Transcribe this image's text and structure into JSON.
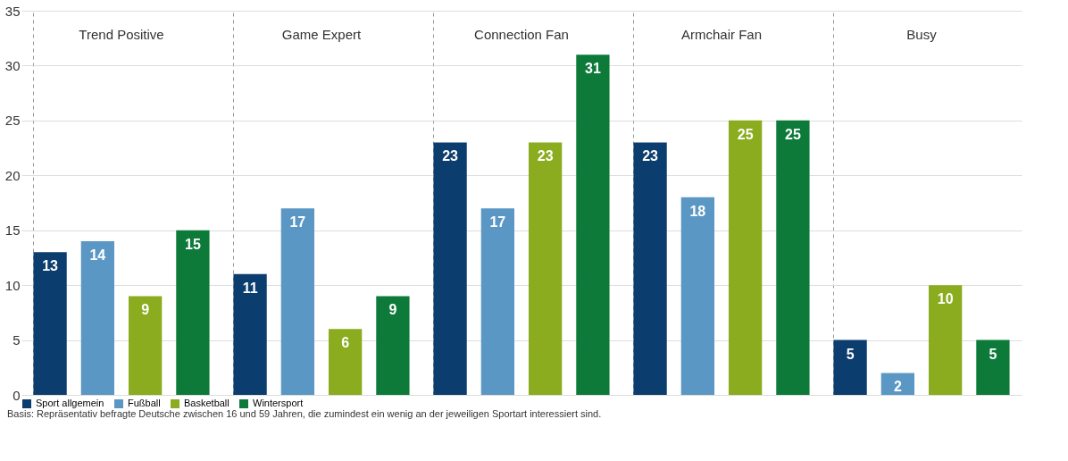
{
  "chart_data": {
    "type": "bar",
    "categories": [
      "Trend Positive",
      "Game Expert",
      "Connection Fan",
      "Armchair Fan",
      "Busy"
    ],
    "series": [
      {
        "name": "Sport allgemein",
        "color": "#0b3d6e",
        "values": [
          13,
          11,
          23,
          23,
          5
        ]
      },
      {
        "name": "Fußball",
        "color": "#5b97c5",
        "values": [
          14,
          17,
          17,
          18,
          2
        ]
      },
      {
        "name": "Basketball",
        "color": "#8aac1e",
        "values": [
          9,
          6,
          23,
          25,
          10
        ]
      },
      {
        "name": "Wintersport",
        "color": "#0e7a3a",
        "values": [
          15,
          9,
          31,
          25,
          5
        ]
      }
    ],
    "ylim": [
      0,
      35
    ],
    "yticks": [
      0,
      5,
      10,
      15,
      20,
      25,
      30,
      35
    ],
    "grid": true,
    "data_labels": true,
    "legend": "bottom left",
    "annotations": [
      "Basis: Repräsentativ befragte Deutsche zwischen 16 und 59 Jahren, die zumindest ein wenig an der jeweiligen Sportart interessiert sind."
    ]
  }
}
